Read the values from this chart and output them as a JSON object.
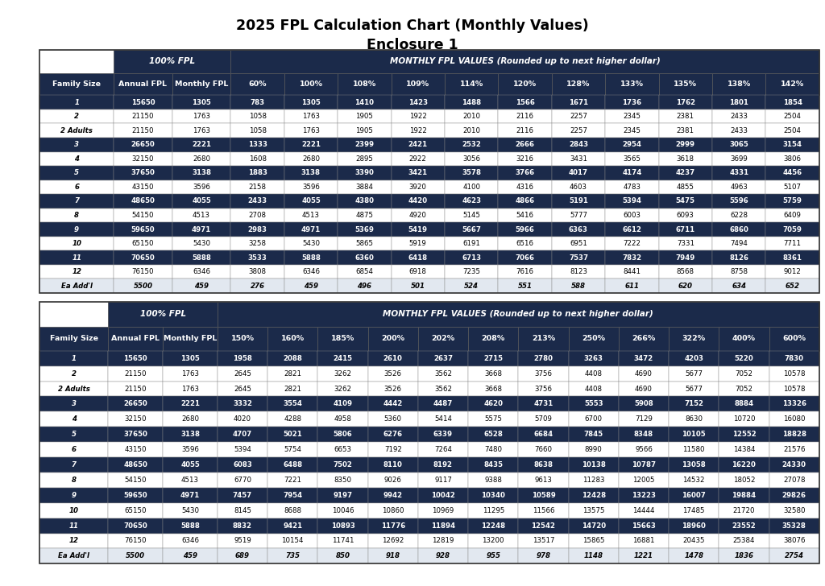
{
  "title_line1": "2025 FPL Calculation Chart (Monthly Values)",
  "title_line2": "Enclosure 1",
  "dark_blue": "#1B2A4A",
  "white": "#FFFFFF",
  "light_row": "#D6DCE4",
  "table1": {
    "headers": [
      "Family Size",
      "Annual FPL",
      "Monthly FPL",
      "60%",
      "100%",
      "108%",
      "109%",
      "114%",
      "120%",
      "128%",
      "133%",
      "135%",
      "138%",
      "142%"
    ],
    "rows": [
      [
        "1",
        "15650",
        "1305",
        "783",
        "1305",
        "1410",
        "1423",
        "1488",
        "1566",
        "1671",
        "1736",
        "1762",
        "1801",
        "1854"
      ],
      [
        "2",
        "21150",
        "1763",
        "1058",
        "1763",
        "1905",
        "1922",
        "2010",
        "2116",
        "2257",
        "2345",
        "2381",
        "2433",
        "2504"
      ],
      [
        "2 Adults",
        "21150",
        "1763",
        "1058",
        "1763",
        "1905",
        "1922",
        "2010",
        "2116",
        "2257",
        "2345",
        "2381",
        "2433",
        "2504"
      ],
      [
        "3",
        "26650",
        "2221",
        "1333",
        "2221",
        "2399",
        "2421",
        "2532",
        "2666",
        "2843",
        "2954",
        "2999",
        "3065",
        "3154"
      ],
      [
        "4",
        "32150",
        "2680",
        "1608",
        "2680",
        "2895",
        "2922",
        "3056",
        "3216",
        "3431",
        "3565",
        "3618",
        "3699",
        "3806"
      ],
      [
        "5",
        "37650",
        "3138",
        "1883",
        "3138",
        "3390",
        "3421",
        "3578",
        "3766",
        "4017",
        "4174",
        "4237",
        "4331",
        "4456"
      ],
      [
        "6",
        "43150",
        "3596",
        "2158",
        "3596",
        "3884",
        "3920",
        "4100",
        "4316",
        "4603",
        "4783",
        "4855",
        "4963",
        "5107"
      ],
      [
        "7",
        "48650",
        "4055",
        "2433",
        "4055",
        "4380",
        "4420",
        "4623",
        "4866",
        "5191",
        "5394",
        "5475",
        "5596",
        "5759"
      ],
      [
        "8",
        "54150",
        "4513",
        "2708",
        "4513",
        "4875",
        "4920",
        "5145",
        "5416",
        "5777",
        "6003",
        "6093",
        "6228",
        "6409"
      ],
      [
        "9",
        "59650",
        "4971",
        "2983",
        "4971",
        "5369",
        "5419",
        "5667",
        "5966",
        "6363",
        "6612",
        "6711",
        "6860",
        "7059"
      ],
      [
        "10",
        "65150",
        "5430",
        "3258",
        "5430",
        "5865",
        "5919",
        "6191",
        "6516",
        "6951",
        "7222",
        "7331",
        "7494",
        "7711"
      ],
      [
        "11",
        "70650",
        "5888",
        "3533",
        "5888",
        "6360",
        "6418",
        "6713",
        "7066",
        "7537",
        "7832",
        "7949",
        "8126",
        "8361"
      ],
      [
        "12",
        "76150",
        "6346",
        "3808",
        "6346",
        "6854",
        "6918",
        "7235",
        "7616",
        "8123",
        "8441",
        "8568",
        "8758",
        "9012"
      ],
      [
        "Ea Add'l",
        "5500",
        "459",
        "276",
        "459",
        "496",
        "501",
        "524",
        "551",
        "588",
        "611",
        "620",
        "634",
        "652"
      ]
    ],
    "dark_rows": [
      0,
      2,
      3,
      5,
      6,
      8,
      9,
      11,
      12
    ],
    "last_row": 13
  },
  "table2": {
    "headers": [
      "Family Size",
      "Annual FPL",
      "Monthly FPL",
      "150%",
      "160%",
      "185%",
      "200%",
      "202%",
      "208%",
      "213%",
      "250%",
      "266%",
      "322%",
      "400%",
      "600%"
    ],
    "rows": [
      [
        "1",
        "15650",
        "1305",
        "1958",
        "2088",
        "2415",
        "2610",
        "2637",
        "2715",
        "2780",
        "3263",
        "3472",
        "4203",
        "5220",
        "7830"
      ],
      [
        "2",
        "21150",
        "1763",
        "2645",
        "2821",
        "3262",
        "3526",
        "3562",
        "3668",
        "3756",
        "4408",
        "4690",
        "5677",
        "7052",
        "10578"
      ],
      [
        "2 Adults",
        "21150",
        "1763",
        "2645",
        "2821",
        "3262",
        "3526",
        "3562",
        "3668",
        "3756",
        "4408",
        "4690",
        "5677",
        "7052",
        "10578"
      ],
      [
        "3",
        "26650",
        "2221",
        "3332",
        "3554",
        "4109",
        "4442",
        "4487",
        "4620",
        "4731",
        "5553",
        "5908",
        "7152",
        "8884",
        "13326"
      ],
      [
        "4",
        "32150",
        "2680",
        "4020",
        "4288",
        "4958",
        "5360",
        "5414",
        "5575",
        "5709",
        "6700",
        "7129",
        "8630",
        "10720",
        "16080"
      ],
      [
        "5",
        "37650",
        "3138",
        "4707",
        "5021",
        "5806",
        "6276",
        "6339",
        "6528",
        "6684",
        "7845",
        "8348",
        "10105",
        "12552",
        "18828"
      ],
      [
        "6",
        "43150",
        "3596",
        "5394",
        "5754",
        "6653",
        "7192",
        "7264",
        "7480",
        "7660",
        "8990",
        "9566",
        "11580",
        "14384",
        "21576"
      ],
      [
        "7",
        "48650",
        "4055",
        "6083",
        "6488",
        "7502",
        "8110",
        "8192",
        "8435",
        "8638",
        "10138",
        "10787",
        "13058",
        "16220",
        "24330"
      ],
      [
        "8",
        "54150",
        "4513",
        "6770",
        "7221",
        "8350",
        "9026",
        "9117",
        "9388",
        "9613",
        "11283",
        "12005",
        "14532",
        "18052",
        "27078"
      ],
      [
        "9",
        "59650",
        "4971",
        "7457",
        "7954",
        "9197",
        "9942",
        "10042",
        "10340",
        "10589",
        "12428",
        "13223",
        "16007",
        "19884",
        "29826"
      ],
      [
        "10",
        "65150",
        "5430",
        "8145",
        "8688",
        "10046",
        "10860",
        "10969",
        "11295",
        "11566",
        "13575",
        "14444",
        "17485",
        "21720",
        "32580"
      ],
      [
        "11",
        "70650",
        "5888",
        "8832",
        "9421",
        "10893",
        "11776",
        "11894",
        "12248",
        "12542",
        "14720",
        "15663",
        "18960",
        "23552",
        "35328"
      ],
      [
        "12",
        "76150",
        "6346",
        "9519",
        "10154",
        "11741",
        "12692",
        "12819",
        "13200",
        "13517",
        "15865",
        "16881",
        "20435",
        "25384",
        "38076"
      ],
      [
        "Ea Add'l",
        "5500",
        "459",
        "689",
        "735",
        "850",
        "918",
        "928",
        "955",
        "978",
        "1148",
        "1221",
        "1478",
        "1836",
        "2754"
      ]
    ],
    "dark_rows": [
      0,
      2,
      3,
      5,
      6,
      8,
      9,
      11,
      12
    ],
    "last_row": 13
  }
}
